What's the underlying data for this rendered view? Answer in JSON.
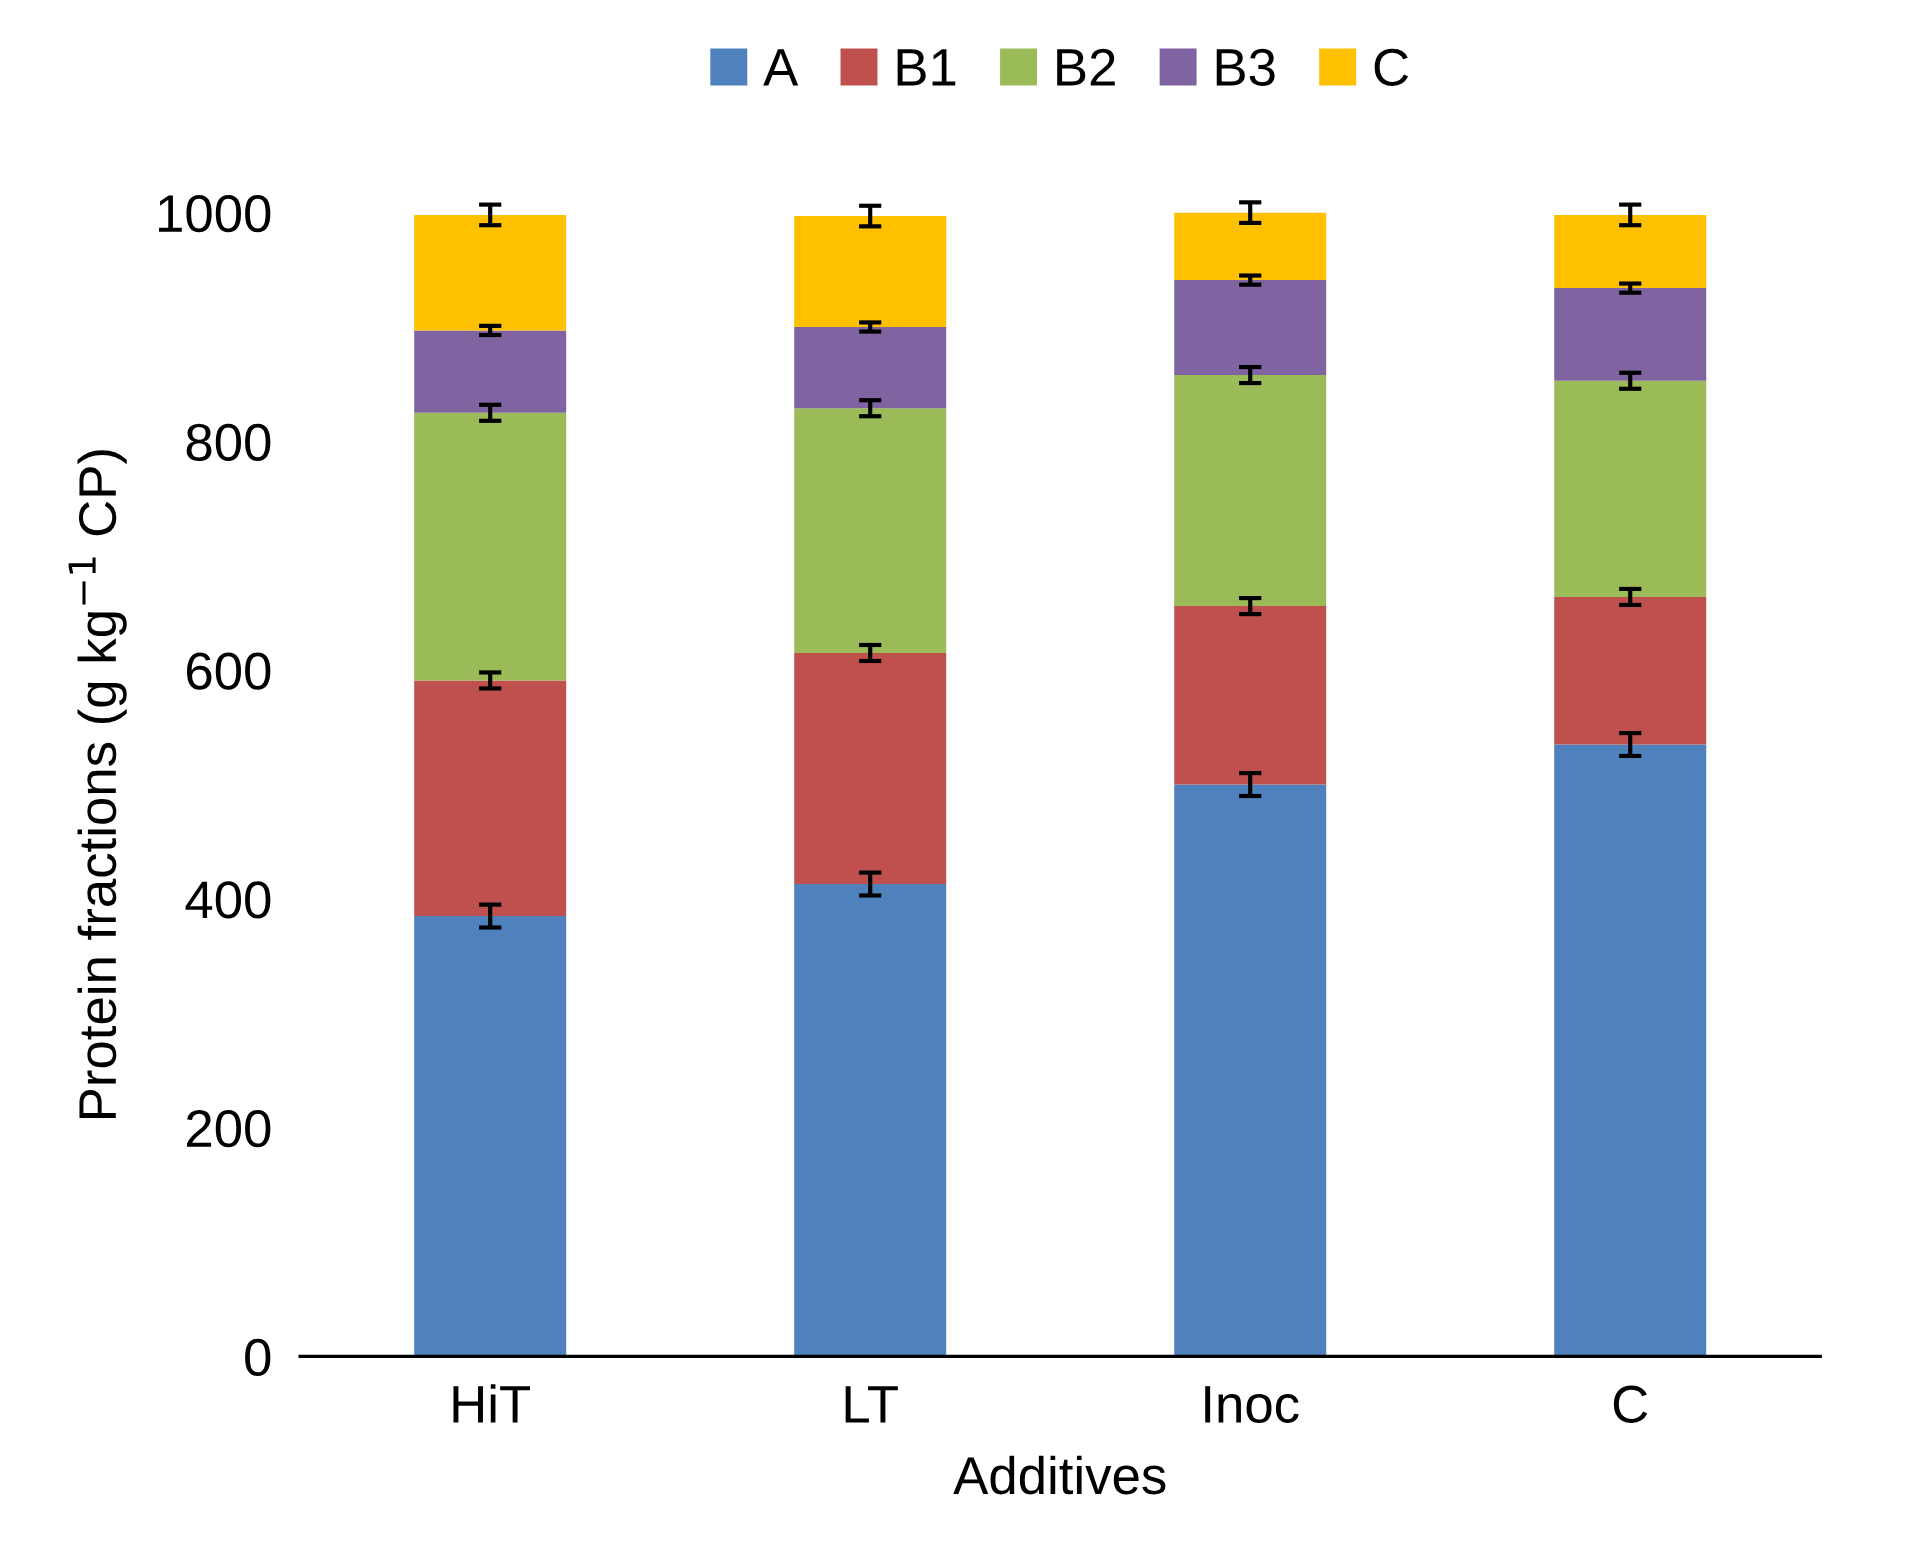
{
  "chart_data": {
    "type": "bar",
    "stacked": true,
    "xlabel": "Additives",
    "ylabel": "Protein fractions (g kg$^{−1}$ CP)",
    "categories": [
      "HiT",
      "LT",
      "Inoc",
      "C"
    ],
    "series": [
      {
        "name": "A",
        "color": "#4f81bd",
        "values": [
          385,
          413,
          500,
          535
        ],
        "errors": [
          10,
          10,
          10,
          10
        ]
      },
      {
        "name": "B1",
        "color": "#c0504d",
        "values": [
          206,
          202,
          156,
          129
        ],
        "errors": [
          7,
          7,
          7,
          7
        ]
      },
      {
        "name": "B2",
        "color": "#9bbb59",
        "values": [
          234,
          214,
          202,
          189
        ],
        "errors": [
          7,
          7,
          7,
          7
        ]
      },
      {
        "name": "B3",
        "color": "#8064a2",
        "values": [
          72,
          71,
          83,
          81
        ],
        "errors": [
          4,
          4,
          4,
          4
        ]
      },
      {
        "name": "C",
        "color": "#ffc000",
        "values": [
          101,
          97,
          59,
          64
        ],
        "errors": [
          9,
          9,
          9,
          9
        ]
      }
    ],
    "ylim": [
      0,
      1000
    ],
    "yticks": [
      0,
      200,
      400,
      600,
      800,
      1000
    ],
    "grid": false,
    "legend": "top"
  }
}
